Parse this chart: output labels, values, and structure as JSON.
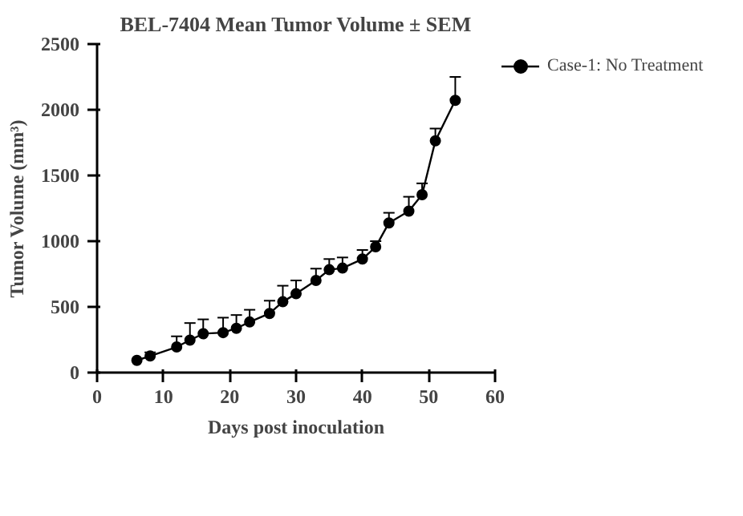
{
  "chart_data": {
    "type": "line",
    "title": "BEL-7404 Mean Tumor Volume ± SEM",
    "xlabel": "Days post inoculation",
    "ylabel": "Tumor Volume (mm³)",
    "x": [
      6,
      8,
      12,
      14,
      16,
      19,
      21,
      23,
      26,
      28,
      30,
      33,
      35,
      37,
      40,
      42,
      44,
      47,
      49,
      51,
      54
    ],
    "series": [
      {
        "name": "Case-1: No Treatment",
        "color": "#000000",
        "values": [
          93,
          126,
          195,
          247,
          296,
          304,
          337,
          385,
          450,
          539,
          600,
          701,
          783,
          795,
          864,
          957,
          1139,
          1229,
          1354,
          1764,
          2072
        ],
        "errors": [
          null,
          [
            126,
            154
          ],
          [
            195,
            276
          ],
          [
            247,
            377
          ],
          [
            296,
            405
          ],
          [
            304,
            418
          ],
          [
            337,
            438
          ],
          [
            385,
            478
          ],
          [
            450,
            547
          ],
          [
            539,
            661
          ],
          [
            600,
            701
          ],
          [
            701,
            791
          ],
          [
            783,
            864
          ],
          [
            795,
            876
          ],
          [
            864,
            933
          ],
          [
            957,
            1000
          ],
          [
            1139,
            1216
          ],
          [
            1229,
            1338
          ],
          [
            1354,
            1440
          ],
          [
            1764,
            1857
          ],
          [
            2072,
            2250
          ]
        ]
      }
    ],
    "xlim": [
      0,
      60
    ],
    "xticks": [
      0,
      10,
      20,
      30,
      40,
      50,
      60
    ],
    "ylim": [
      0,
      2500
    ],
    "yticks": [
      0,
      500,
      1000,
      1500,
      2000,
      2500
    ],
    "grid": false,
    "legend": "top right",
    "marker": "circle",
    "line_style": "solid"
  }
}
